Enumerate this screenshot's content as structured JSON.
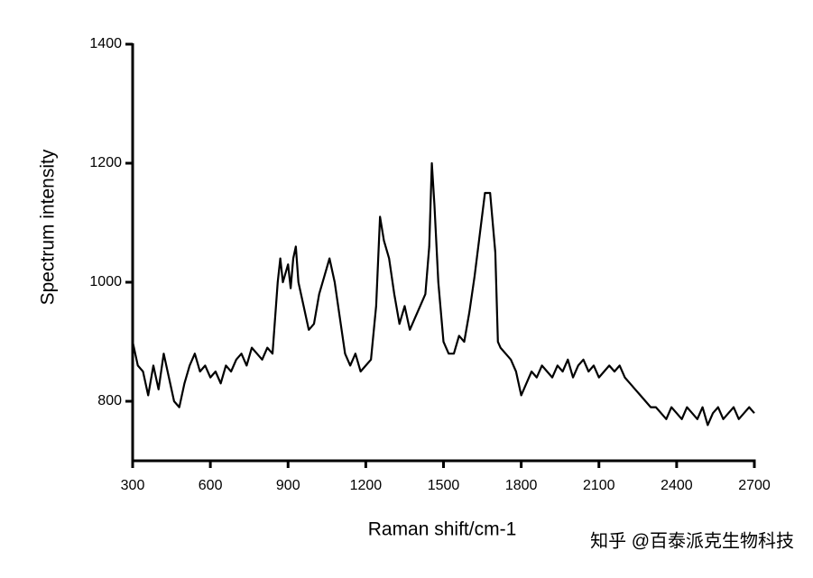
{
  "chart_data": {
    "type": "line",
    "x_label": "Raman shift/cm-1",
    "y_label": "Spectrum intensity",
    "watermark": "知乎 @百泰派克生物科技",
    "xlim": [
      300,
      2700
    ],
    "xticks": [
      300,
      600,
      900,
      1200,
      1500,
      1800,
      2100,
      2400,
      2700
    ],
    "ylim": [
      700,
      1400
    ],
    "yticks": [
      800,
      1000,
      1200,
      1400
    ],
    "series": [
      {
        "name": "Spectrum",
        "color": "#000000",
        "x": [
          300,
          320,
          340,
          360,
          380,
          400,
          420,
          440,
          460,
          480,
          500,
          520,
          540,
          560,
          580,
          600,
          620,
          640,
          660,
          680,
          700,
          720,
          740,
          760,
          780,
          800,
          820,
          840,
          860,
          870,
          880,
          900,
          910,
          920,
          930,
          940,
          960,
          980,
          1000,
          1020,
          1040,
          1060,
          1080,
          1100,
          1120,
          1140,
          1160,
          1180,
          1200,
          1220,
          1240,
          1255,
          1270,
          1290,
          1310,
          1330,
          1350,
          1370,
          1390,
          1410,
          1430,
          1445,
          1455,
          1465,
          1480,
          1500,
          1520,
          1540,
          1560,
          1580,
          1600,
          1620,
          1640,
          1660,
          1680,
          1700,
          1710,
          1720,
          1740,
          1760,
          1780,
          1800,
          1820,
          1840,
          1860,
          1880,
          1900,
          1920,
          1940,
          1960,
          1980,
          2000,
          2020,
          2040,
          2060,
          2080,
          2100,
          2120,
          2140,
          2160,
          2180,
          2200,
          2220,
          2240,
          2260,
          2280,
          2300,
          2320,
          2340,
          2360,
          2380,
          2400,
          2420,
          2440,
          2460,
          2480,
          2500,
          2520,
          2540,
          2560,
          2580,
          2600,
          2620,
          2640,
          2660,
          2680,
          2700
        ],
        "values": [
          900,
          860,
          850,
          810,
          860,
          820,
          880,
          840,
          800,
          790,
          830,
          860,
          880,
          850,
          860,
          840,
          850,
          830,
          860,
          850,
          870,
          880,
          860,
          890,
          880,
          870,
          890,
          880,
          1000,
          1040,
          1000,
          1030,
          990,
          1040,
          1060,
          1000,
          960,
          920,
          930,
          980,
          1010,
          1040,
          1000,
          940,
          880,
          860,
          880,
          850,
          860,
          870,
          960,
          1110,
          1070,
          1040,
          980,
          930,
          960,
          920,
          940,
          960,
          980,
          1060,
          1200,
          1130,
          1000,
          900,
          880,
          880,
          910,
          900,
          950,
          1010,
          1080,
          1150,
          1150,
          1050,
          900,
          890,
          880,
          870,
          850,
          810,
          830,
          850,
          840,
          860,
          850,
          840,
          860,
          850,
          870,
          840,
          860,
          870,
          850,
          860,
          840,
          850,
          860,
          850,
          860,
          840,
          830,
          820,
          810,
          800,
          790,
          790,
          780,
          770,
          790,
          780,
          770,
          790,
          780,
          770,
          790,
          760,
          780,
          790,
          770,
          780,
          790,
          770,
          780,
          790,
          780
        ]
      }
    ]
  }
}
